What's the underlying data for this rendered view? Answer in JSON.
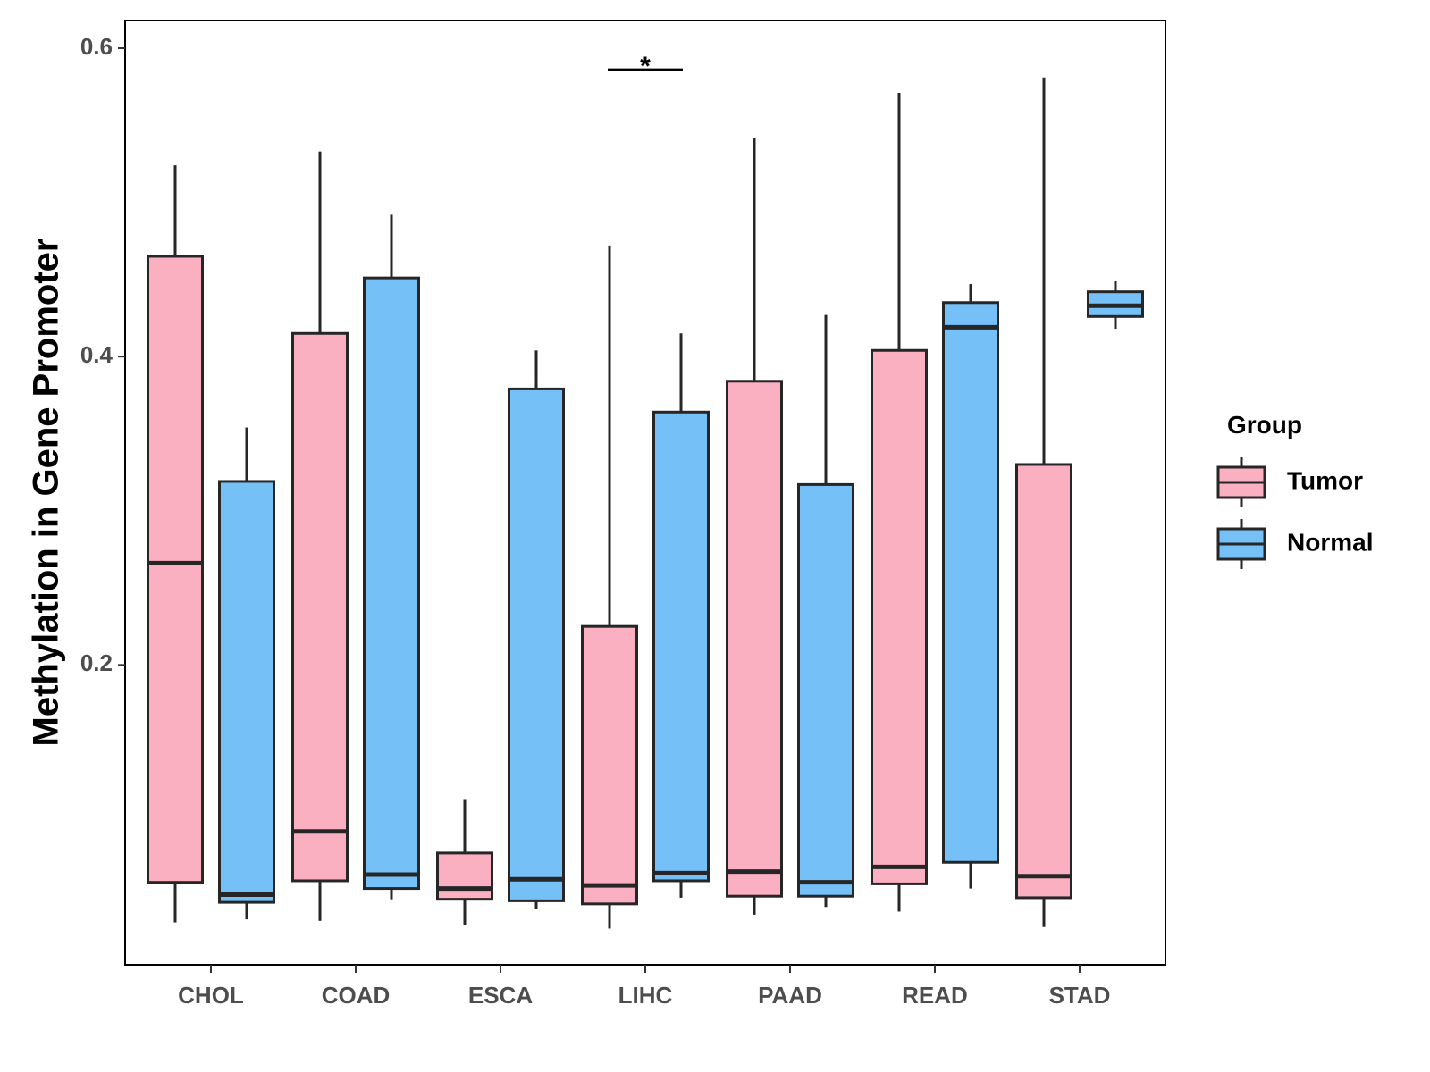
{
  "chart_data": {
    "type": "boxplot",
    "title": "",
    "xlabel": "",
    "ylabel": "Methylation in Gene Promoter",
    "categories": [
      "CHOL",
      "COAD",
      "ESCA",
      "LIHC",
      "PAAD",
      "READ",
      "STAD"
    ],
    "yticks": [
      "0.2",
      "0.4",
      "0.6"
    ],
    "ytick_values": [
      0.2,
      0.4,
      0.6
    ],
    "ylim": [
      0.0,
      0.617
    ],
    "grid": false,
    "legend": {
      "title": "Group",
      "position": "right",
      "entries": [
        {
          "name": "Tumor",
          "color": "#FBB0C2"
        },
        {
          "name": "Normal",
          "color": "#76C0F8"
        }
      ]
    },
    "series": [
      {
        "name": "Tumor",
        "color": "#FBB0C2",
        "boxes": [
          {
            "category": "CHOL",
            "lower_whisker": 0.033,
            "q1": 0.059,
            "median": 0.266,
            "q3": 0.465,
            "upper_whisker": 0.524
          },
          {
            "category": "COAD",
            "lower_whisker": 0.034,
            "q1": 0.06,
            "median": 0.092,
            "q3": 0.415,
            "upper_whisker": 0.533
          },
          {
            "category": "ESCA",
            "lower_whisker": 0.031,
            "q1": 0.048,
            "median": 0.055,
            "q3": 0.078,
            "upper_whisker": 0.113
          },
          {
            "category": "LIHC",
            "lower_whisker": 0.029,
            "q1": 0.045,
            "median": 0.057,
            "q3": 0.225,
            "upper_whisker": 0.472
          },
          {
            "category": "PAAD",
            "lower_whisker": 0.038,
            "q1": 0.05,
            "median": 0.066,
            "q3": 0.384,
            "upper_whisker": 0.542
          },
          {
            "category": "READ",
            "lower_whisker": 0.04,
            "q1": 0.058,
            "median": 0.069,
            "q3": 0.404,
            "upper_whisker": 0.571
          },
          {
            "category": "STAD",
            "lower_whisker": 0.03,
            "q1": 0.049,
            "median": 0.063,
            "q3": 0.33,
            "upper_whisker": 0.581
          }
        ]
      },
      {
        "name": "Normal",
        "color": "#76C0F8",
        "boxes": [
          {
            "category": "CHOL",
            "lower_whisker": 0.035,
            "q1": 0.046,
            "median": 0.051,
            "q3": 0.319,
            "upper_whisker": 0.354
          },
          {
            "category": "COAD",
            "lower_whisker": 0.048,
            "q1": 0.055,
            "median": 0.064,
            "q3": 0.451,
            "upper_whisker": 0.492
          },
          {
            "category": "ESCA",
            "lower_whisker": 0.042,
            "q1": 0.047,
            "median": 0.061,
            "q3": 0.379,
            "upper_whisker": 0.404
          },
          {
            "category": "LIHC",
            "lower_whisker": 0.049,
            "q1": 0.06,
            "median": 0.065,
            "q3": 0.364,
            "upper_whisker": 0.415
          },
          {
            "category": "PAAD",
            "lower_whisker": 0.043,
            "q1": 0.05,
            "median": 0.059,
            "q3": 0.317,
            "upper_whisker": 0.427
          },
          {
            "category": "READ",
            "lower_whisker": 0.055,
            "q1": 0.072,
            "median": 0.419,
            "q3": 0.435,
            "upper_whisker": 0.447
          },
          {
            "category": "STAD",
            "lower_whisker": 0.418,
            "q1": 0.426,
            "median": 0.433,
            "q3": 0.442,
            "upper_whisker": 0.449
          }
        ]
      }
    ],
    "annotations": [
      {
        "category": "LIHC",
        "label": "*",
        "y": 0.586
      }
    ]
  }
}
